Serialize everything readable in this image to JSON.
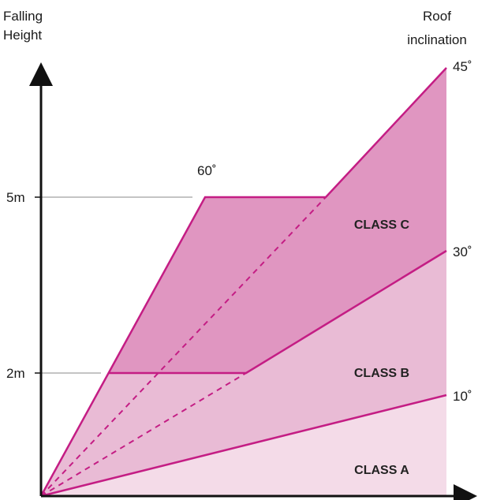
{
  "diagram": {
    "y_axis_title": [
      "Falling",
      "Height"
    ],
    "right_title": [
      "Roof",
      "inclination"
    ],
    "ticks": {
      "five_m": "5m",
      "two_m": "2m"
    },
    "angles": {
      "a45": "45˚",
      "a60": "60˚",
      "a30": "30˚",
      "a10": "10˚"
    },
    "classes": {
      "a": "CLASS A",
      "b": "CLASS B",
      "c": "CLASS C"
    },
    "colors": {
      "line": "#c41d84",
      "class_a_fill": "#f4dbe8",
      "class_b_fill": "#e9bbd5",
      "class_c_fill": "#e096c1",
      "axis": "#111111",
      "guide": "#888888"
    }
  }
}
